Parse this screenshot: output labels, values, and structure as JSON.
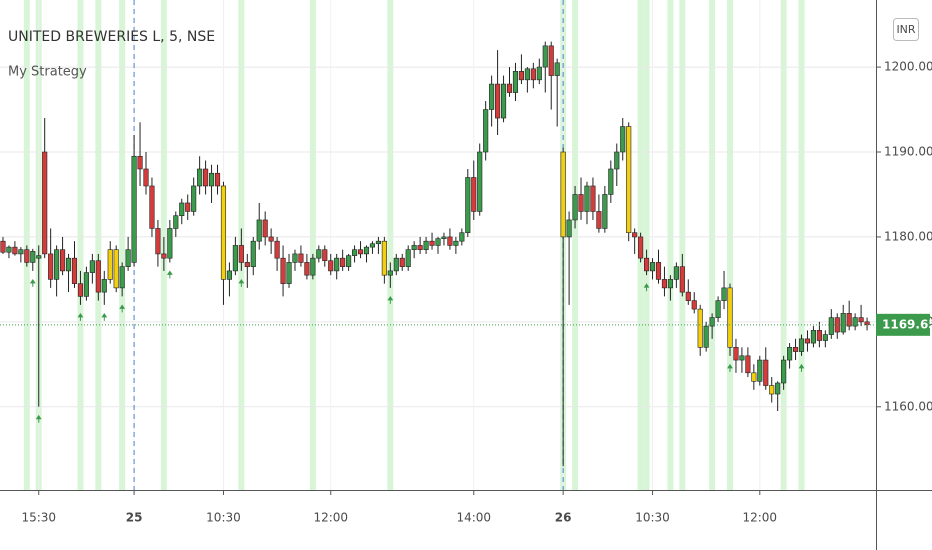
{
  "chart_data": {
    "type": "candlestick",
    "title": "UNITED BREWERIES L, 5, NSE",
    "subtitle": "My Strategy",
    "currency": "INR",
    "up_color": "#3c9a4c",
    "down_color": "#d43c3c",
    "highlight_color": "#f2cf10",
    "band_color": "#d8f5d8",
    "signal_color": "#3c9a4c",
    "session_color": "#4a7fd0",
    "grid": true,
    "xlim": [
      -0.5,
      146.5
    ],
    "xticks": [
      {
        "value": 6,
        "label": "15:30"
      },
      {
        "value": 22,
        "label": "25"
      },
      {
        "value": 37,
        "label": "10:30"
      },
      {
        "value": 55,
        "label": "12:00"
      },
      {
        "value": 79,
        "label": "14:00"
      },
      {
        "value": 94,
        "label": "26"
      },
      {
        "value": 109,
        "label": "10:30"
      },
      {
        "value": 127,
        "label": "12:00"
      }
    ],
    "ylim": [
      1150.2,
      1207.9
    ],
    "yticks": [
      {
        "value": 1160,
        "label": "1160.00"
      },
      {
        "value": 1170,
        "label": "1170.00"
      },
      {
        "value": 1180,
        "label": "1180.00"
      },
      {
        "value": 1190,
        "label": "1190.00"
      },
      {
        "value": 1200,
        "label": "1200.00"
      }
    ],
    "session_breaks": [
      22,
      94
    ],
    "highlight_bands": [
      4,
      6,
      13,
      16,
      20,
      27,
      40,
      52,
      65,
      94,
      96,
      107,
      108,
      112,
      114,
      119,
      122,
      131,
      134
    ],
    "signals": [
      5,
      6,
      13,
      17,
      20,
      28,
      40,
      65,
      108,
      122,
      134
    ],
    "highlighted": [
      18,
      19,
      37,
      64,
      94,
      105,
      117,
      122,
      126,
      129
    ],
    "open": [
      1179.5,
      1178.2,
      1178.8,
      1178,
      1178.5,
      1177,
      1177.5,
      1190,
      1178,
      1175,
      1178.5,
      1176,
      1177.5,
      1174.5,
      1173,
      1175.8,
      1177.2,
      1173.5,
      1175,
      1178.5,
      1174,
      1176.5,
      1177,
      1189.5,
      1188,
      1186,
      1181,
      1178,
      1177.5,
      1181,
      1182.5,
      1184,
      1183,
      1186,
      1188,
      1186,
      1187.5,
      1186,
      1175,
      1176,
      1179,
      1177,
      1176.5,
      1179.5,
      1182,
      1180,
      1179.5,
      1177.5,
      1174.5,
      1177,
      1178,
      1177,
      1175.5,
      1177.5,
      1178.5,
      1177.2,
      1176,
      1177.5,
      1176.5,
      1177.8,
      1178.5,
      1178,
      1178.8,
      1179.2,
      1179.5,
      1175.5,
      1176,
      1177.5,
      1176.5,
      1178.5,
      1179,
      1178.5,
      1179.5,
      1179,
      1179.8,
      1180,
      1179,
      1179.5,
      1180.5,
      1187,
      1183,
      1190,
      1195,
      1198,
      1194,
      1198,
      1197,
      1199.5,
      1198.5,
      1199.8,
      1198.5,
      1200,
      1202.5,
      1199,
      1190,
      1180,
      1182,
      1185,
      1183,
      1186,
      1183,
      1181,
      1185,
      1188,
      1190,
      1193,
      1180.5,
      1180,
      1177.5,
      1176,
      1177,
      1175,
      1174,
      1175,
      1176.5,
      1173.5,
      1172.5,
      1171.5,
      1167,
      1169.5,
      1170.5,
      1172.5,
      1174,
      1167,
      1165.5,
      1166,
      1164,
      1163,
      1165.5,
      1162.5,
      1161.5,
      1162.8,
      1165.5,
      1167,
      1166.5,
      1168,
      1167.5,
      1169,
      1167.8,
      1168.5,
      1170.5,
      1168.8,
      1171,
      1169.5,
      1170.5,
      1170
    ],
    "high": [
      1180,
      1179,
      1179.5,
      1178.8,
      1179,
      1178.6,
      1179,
      1194,
      1181,
      1179,
      1180,
      1178,
      1179.5,
      1176,
      1176.5,
      1178,
      1178,
      1176,
      1179.5,
      1179,
      1177,
      1180,
      1192,
      1193.5,
      1190,
      1187,
      1182,
      1180,
      1182,
      1183,
      1184.5,
      1185,
      1187,
      1189.5,
      1189,
      1188.5,
      1188.5,
      1186.5,
      1177,
      1180,
      1181,
      1178,
      1180,
      1184,
      1183,
      1181,
      1180,
      1179,
      1178,
      1178.5,
      1179,
      1178,
      1178,
      1179,
      1179,
      1178,
      1178,
      1178.5,
      1178,
      1179,
      1179.5,
      1179,
      1179.5,
      1180,
      1180,
      1177,
      1178,
      1178,
      1179,
      1179.5,
      1180,
      1180,
      1180.5,
      1180,
      1180.5,
      1181,
      1180,
      1181,
      1188,
      1189,
      1191,
      1196,
      1199,
      1202,
      1199,
      1200,
      1200.5,
      1201.5,
      1200,
      1200.5,
      1201,
      1203,
      1203,
      1201,
      1190.5,
      1183,
      1186,
      1187,
      1186.5,
      1187,
      1185,
      1186,
      1189,
      1191,
      1194,
      1193.5,
      1181,
      1180.5,
      1178.5,
      1177.5,
      1178.5,
      1176.5,
      1175.5,
      1177,
      1178,
      1175,
      1173.5,
      1172,
      1170,
      1171,
      1173,
      1176,
      1174.5,
      1168,
      1167,
      1167,
      1165,
      1166,
      1167,
      1163.5,
      1163,
      1166,
      1167.5,
      1168,
      1168.5,
      1169,
      1169.5,
      1170,
      1169,
      1171.5,
      1171,
      1172,
      1172.5,
      1171,
      1172,
      1170.5
    ],
    "low": [
      1178,
      1177.5,
      1177.8,
      1177,
      1176.5,
      1176,
      1160,
      1177.5,
      1174,
      1173,
      1175.5,
      1173.5,
      1174,
      1172,
      1172.5,
      1174.5,
      1172.5,
      1172,
      1174.5,
      1173.5,
      1173,
      1176,
      1176.5,
      1186,
      1185,
      1180,
      1176.5,
      1176,
      1177,
      1180,
      1181.5,
      1182,
      1182.5,
      1185,
      1185,
      1184,
      1185,
      1172,
      1173,
      1175.5,
      1176,
      1174,
      1175.5,
      1178.5,
      1179,
      1178,
      1176,
      1173,
      1174,
      1176,
      1176.5,
      1175,
      1175,
      1177,
      1176.5,
      1175.5,
      1175,
      1176,
      1176,
      1177,
      1177.5,
      1177,
      1178,
      1178,
      1174.5,
      1174,
      1175.5,
      1176,
      1176,
      1177.5,
      1178,
      1178,
      1178.5,
      1178,
      1179,
      1178.5,
      1178,
      1179,
      1180,
      1182,
      1182.5,
      1189,
      1193,
      1192,
      1193.5,
      1196.5,
      1196,
      1198,
      1197,
      1197.5,
      1198,
      1197,
      1195,
      1193,
      1153,
      1172,
      1181,
      1182,
      1181.5,
      1182,
      1180.5,
      1180.5,
      1184,
      1186,
      1189,
      1179.5,
      1178,
      1177,
      1175.5,
      1175,
      1174.5,
      1173,
      1172.5,
      1174,
      1173,
      1172,
      1171,
      1166,
      1166.5,
      1168,
      1170,
      1171.5,
      1166,
      1164,
      1164,
      1163.5,
      1162,
      1162.5,
      1162,
      1160.5,
      1159.5,
      1162,
      1164.5,
      1165.5,
      1166,
      1166.5,
      1167,
      1167,
      1167,
      1168,
      1168,
      1168.5,
      1169,
      1169,
      1169.5,
      1169
    ],
    "close": [
      1178.2,
      1178.8,
      1178,
      1178.5,
      1177,
      1178.3,
      1177.8,
      1178,
      1175,
      1178.5,
      1176,
      1177.5,
      1174.5,
      1173,
      1175.8,
      1177.2,
      1173.5,
      1175,
      1178.5,
      1174,
      1176.5,
      1178.5,
      1189.5,
      1188,
      1186,
      1181,
      1178,
      1177.5,
      1181,
      1182.5,
      1184,
      1183,
      1186,
      1188,
      1186,
      1187.5,
      1186,
      1175,
      1176,
      1179,
      1177,
      1176.5,
      1179.5,
      1182,
      1180,
      1179.5,
      1177.5,
      1174.5,
      1177,
      1178,
      1177,
      1175.5,
      1177.5,
      1178.5,
      1177.2,
      1176,
      1177.5,
      1176.5,
      1177.8,
      1178.5,
      1178,
      1178.8,
      1179.2,
      1179.5,
      1175.5,
      1176,
      1177.5,
      1176.5,
      1178.5,
      1179,
      1178.5,
      1179.5,
      1179,
      1179.8,
      1180,
      1179,
      1179.5,
      1180.5,
      1187,
      1183,
      1190,
      1195,
      1198,
      1194,
      1198,
      1197,
      1199.5,
      1198.5,
      1199.8,
      1198.5,
      1200,
      1202.5,
      1199,
      1200.5,
      1180,
      1182,
      1185,
      1183,
      1186,
      1183,
      1181,
      1185,
      1188,
      1190,
      1193,
      1180.5,
      1180,
      1177.5,
      1176,
      1177,
      1175,
      1174,
      1175,
      1176.5,
      1173.5,
      1172.5,
      1171.5,
      1167,
      1169.5,
      1170.5,
      1172.5,
      1174,
      1167,
      1165.5,
      1166,
      1164,
      1163,
      1165.5,
      1162.5,
      1161.5,
      1162.8,
      1165.5,
      1167,
      1166.5,
      1168,
      1167.5,
      1169,
      1167.8,
      1168.5,
      1170.5,
      1168.8,
      1171,
      1169.5,
      1170.5,
      1170,
      1169.65
    ]
  }
}
